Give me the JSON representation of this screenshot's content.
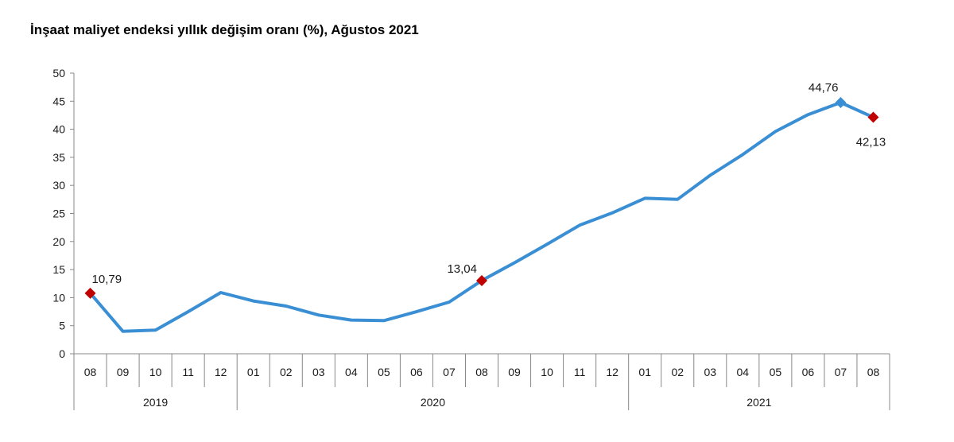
{
  "chart_data": {
    "type": "line",
    "title": "İnşaat maliyet endeksi yıllık değişim oranı (%), Ağustos 2021",
    "xlabel": "",
    "ylabel": "",
    "ylim": [
      0,
      50
    ],
    "yticks": [
      0,
      5,
      10,
      15,
      20,
      25,
      30,
      35,
      40,
      45,
      50
    ],
    "categories": [
      "08",
      "09",
      "10",
      "11",
      "12",
      "01",
      "02",
      "03",
      "04",
      "05",
      "06",
      "07",
      "08",
      "09",
      "10",
      "11",
      "12",
      "01",
      "02",
      "03",
      "04",
      "05",
      "06",
      "07",
      "08"
    ],
    "year_groups": [
      {
        "label": "2019",
        "count": 5
      },
      {
        "label": "2020",
        "count": 12
      },
      {
        "label": "2021",
        "count": 8
      }
    ],
    "series": [
      {
        "name": "Yıllık değişim (%)",
        "color": "#3a8fd4",
        "values": [
          10.79,
          4.0,
          4.2,
          7.5,
          10.9,
          9.4,
          8.5,
          6.9,
          6.0,
          5.9,
          7.5,
          9.2,
          13.04,
          16.2,
          19.5,
          22.9,
          25.1,
          27.7,
          27.5,
          31.8,
          35.5,
          39.6,
          42.6,
          44.76,
          42.13
        ]
      }
    ],
    "highlights": [
      {
        "index": 0,
        "label": "10,79",
        "color": "#c00000"
      },
      {
        "index": 12,
        "label": "13,04",
        "color": "#c00000"
      },
      {
        "index": 23,
        "label": "44,76",
        "color": "#3a8fd4"
      },
      {
        "index": 24,
        "label": "42,13",
        "color": "#c00000"
      }
    ]
  }
}
